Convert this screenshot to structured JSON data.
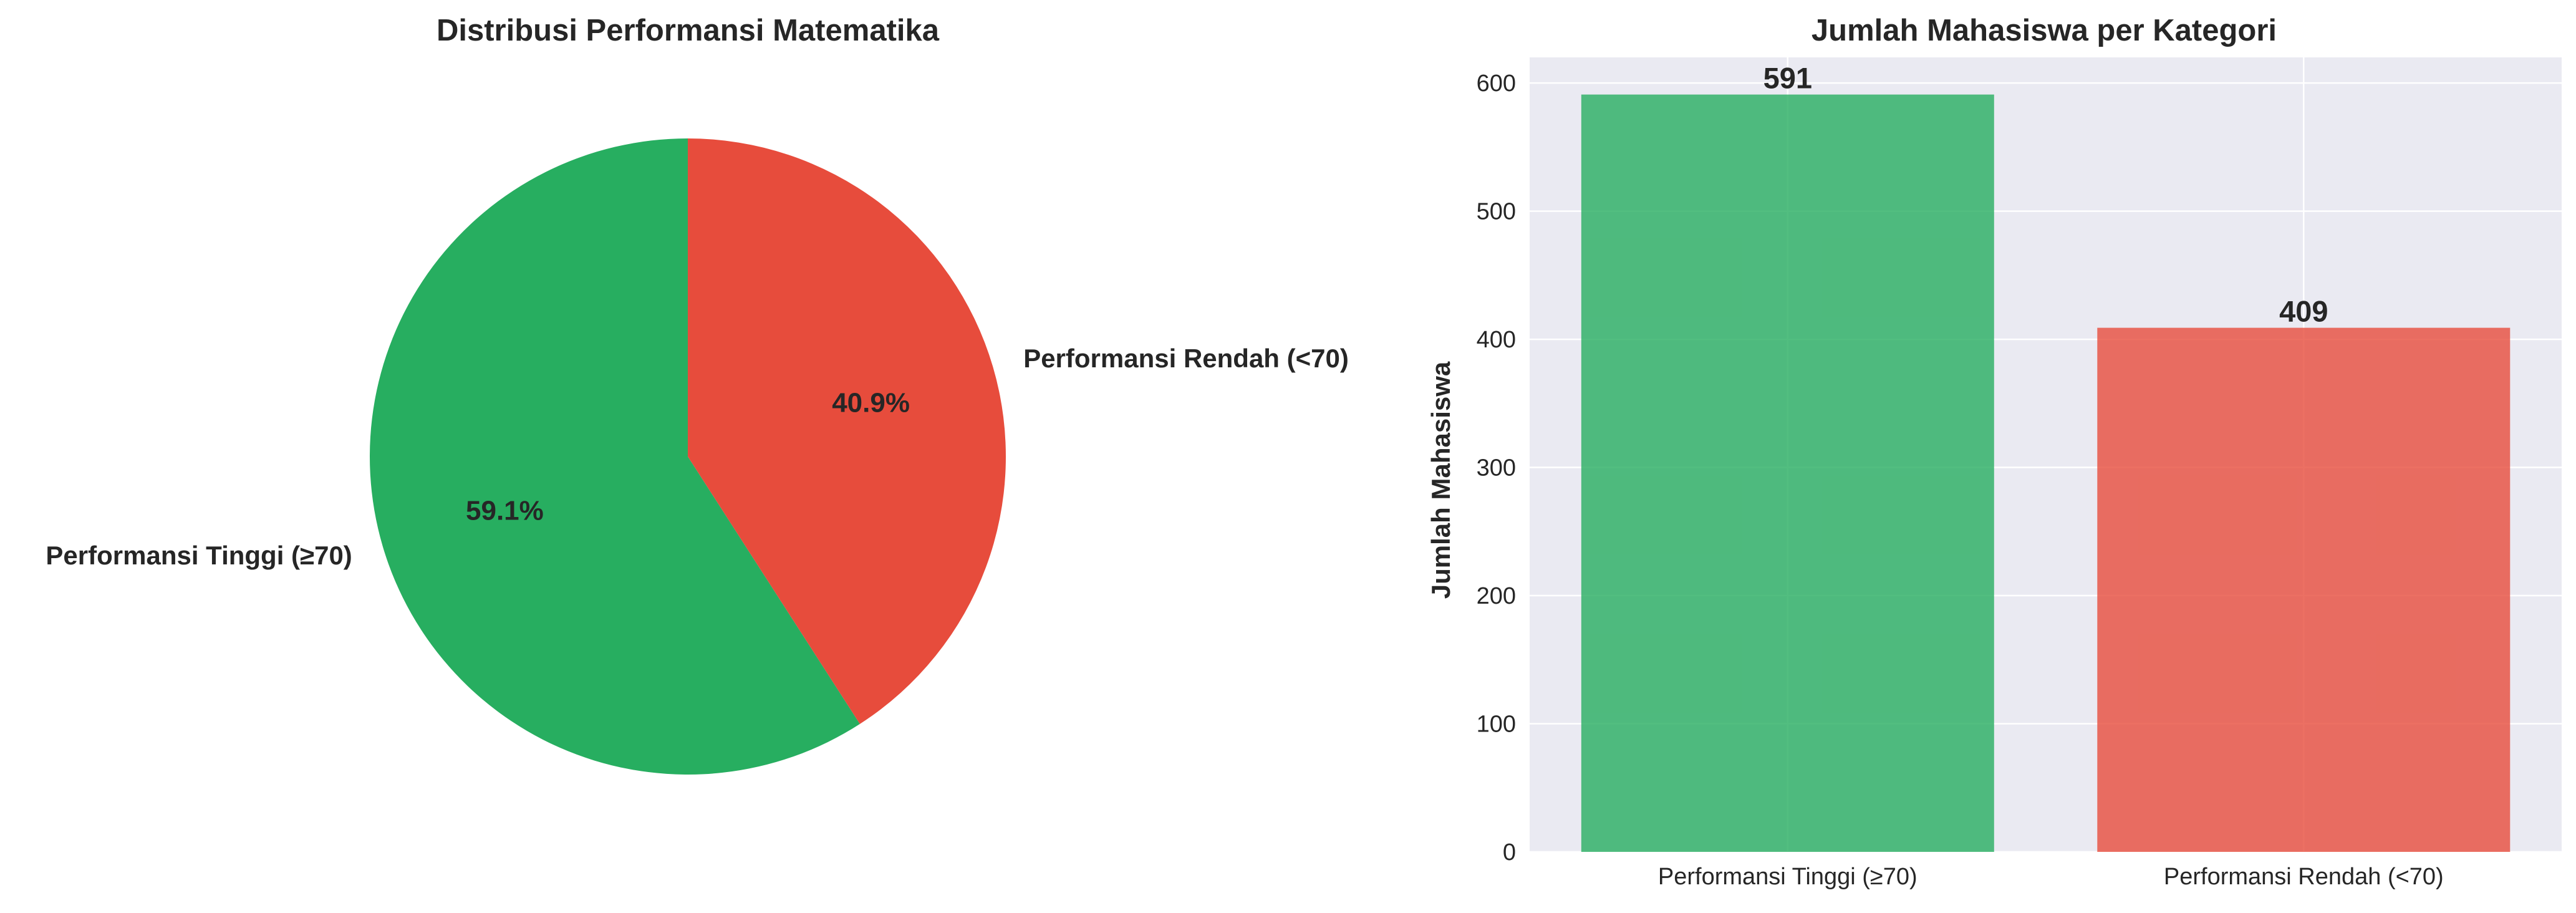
{
  "chart_data": [
    {
      "type": "pie",
      "title": "Distribusi Performansi Matematika",
      "labels": [
        "Performansi Tinggi (≥70)",
        "Performansi Rendah (<70)"
      ],
      "values": [
        59.1,
        40.9
      ],
      "percent_labels": [
        "59.1%",
        "40.9%"
      ],
      "colors": [
        "#27ae60",
        "#e74c3c"
      ],
      "start_angle_deg": 90,
      "direction": "counterclockwise",
      "legend": "none"
    },
    {
      "type": "bar",
      "title": "Jumlah Mahasiswa per Kategori",
      "categories": [
        "Performansi Tinggi (≥70)",
        "Performansi Rendah (<70)"
      ],
      "values": [
        591,
        409
      ],
      "value_labels": [
        "591",
        "409"
      ],
      "colors": [
        "#27ae60",
        "#e74c3c"
      ],
      "xlabel": "",
      "ylabel": "Jumlah Mahasiswa",
      "ylim": [
        0,
        620
      ],
      "yticks": [
        0,
        100,
        200,
        300,
        400,
        500,
        600
      ],
      "grid": true,
      "background": "#eaeaf2",
      "legend": "none"
    }
  ]
}
